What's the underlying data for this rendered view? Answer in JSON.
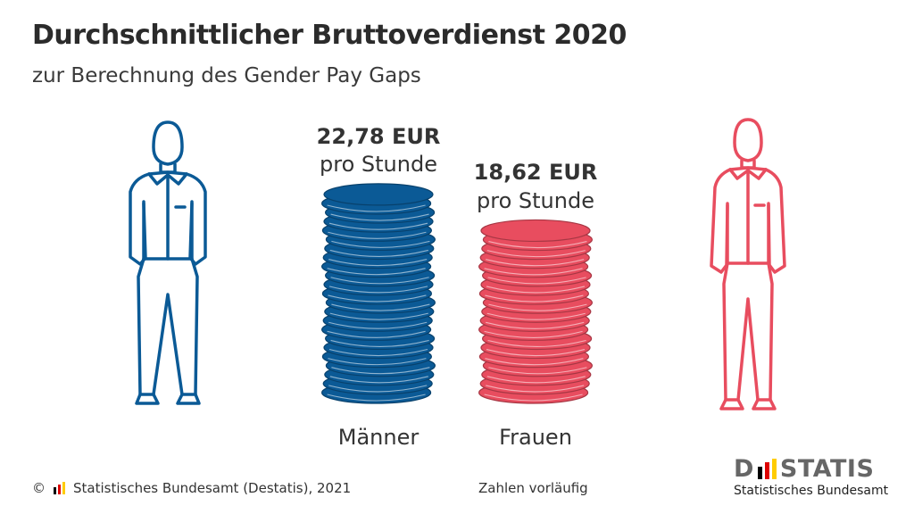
{
  "header": {
    "title": "Durchschnittlicher Bruttoverdienst 2020",
    "subtitle": "zur Berechnung des Gender Pay Gaps"
  },
  "chart_data": {
    "type": "bar",
    "categories": [
      "Männer",
      "Frauen"
    ],
    "values": [
      22.78,
      18.62
    ],
    "value_labels": [
      "22,78 EUR",
      "18,62 EUR"
    ],
    "unit_label": "pro Stunde",
    "colors": [
      "#0b5a96",
      "#e84d5f"
    ],
    "title": "Durchschnittlicher Bruttoverdienst 2020",
    "subtitle": "zur Berechnung des Gender Pay Gaps"
  },
  "figures": [
    {
      "icon": "man-icon",
      "color": "#0b5a96"
    },
    {
      "icon": "woman-icon",
      "color": "#e84d5f"
    }
  ],
  "footer": {
    "copyright": "© ",
    "source": "Statistisches Bundesamt (Destatis), 2021",
    "note": "Zahlen vorläufig"
  },
  "logo": {
    "word_left": "D",
    "word_right": "STATIS",
    "subtitle": "Statistisches Bundesamt",
    "flag_colors": [
      "#000000",
      "#dd0000",
      "#ffcc00"
    ]
  }
}
